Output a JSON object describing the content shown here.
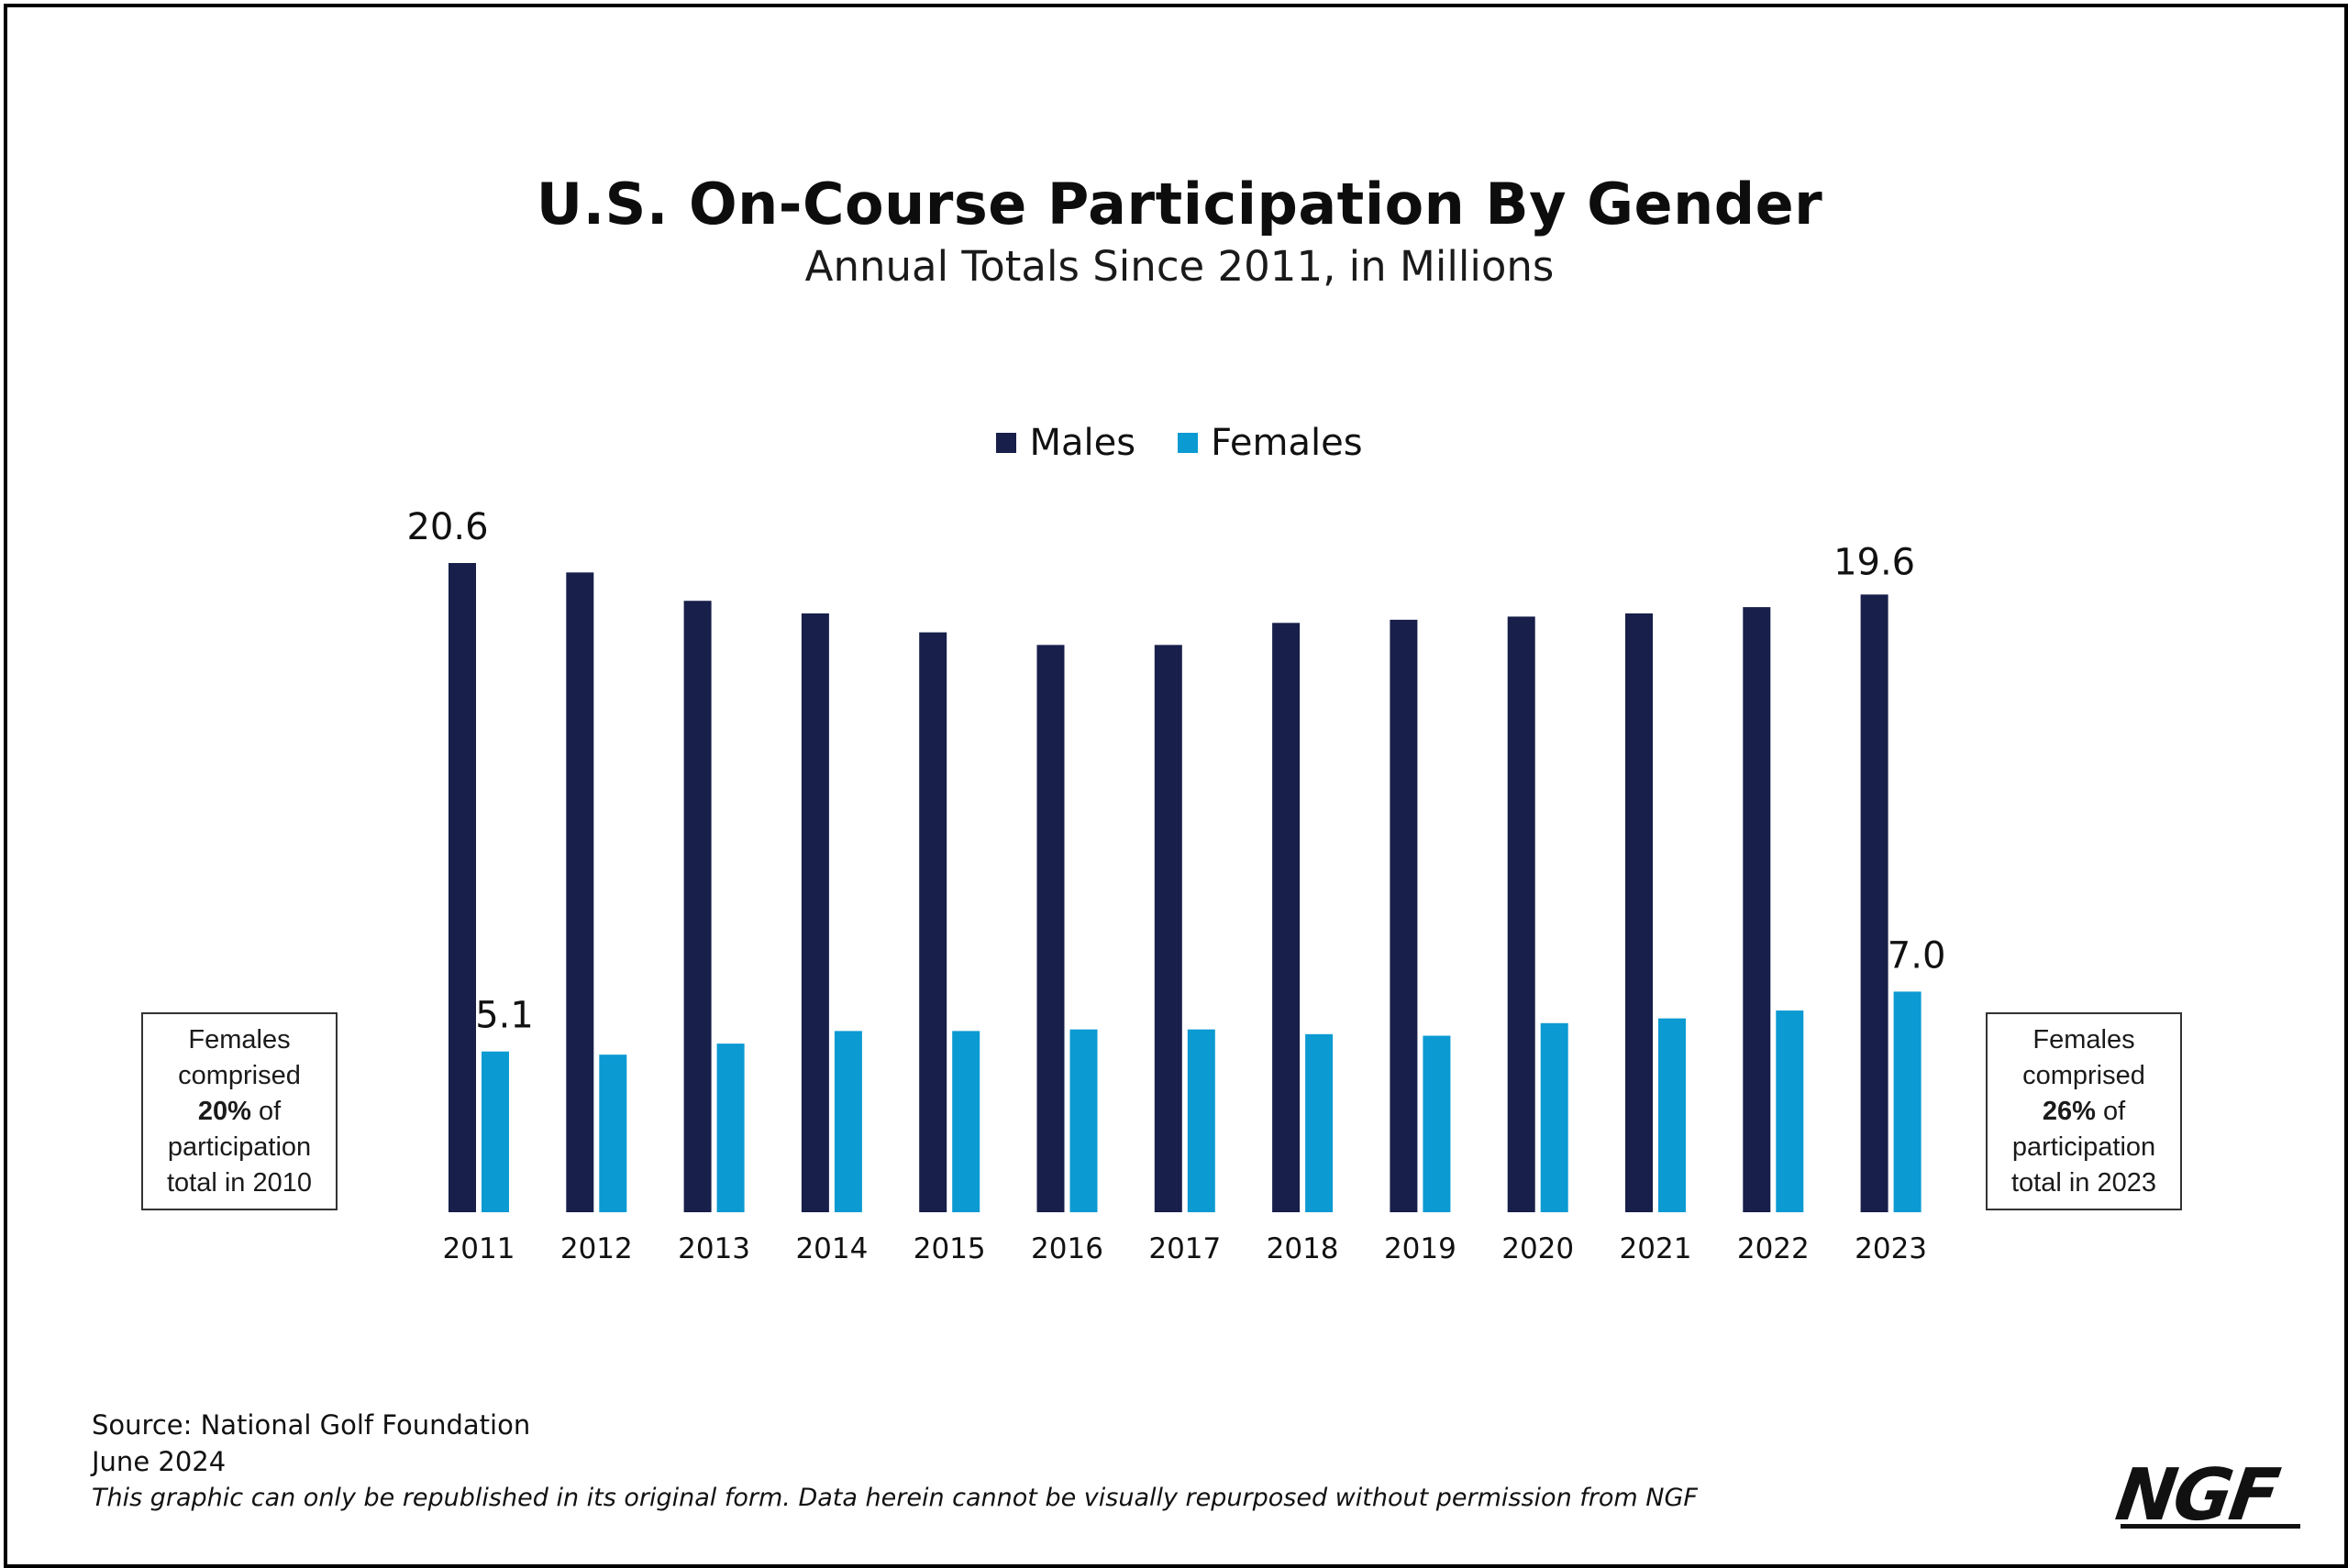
{
  "chart_data": {
    "type": "bar",
    "title": "U.S. On-Course Participation By Gender",
    "subtitle": "Annual Totals Since 2011, in Millions",
    "categories": [
      "2011",
      "2012",
      "2013",
      "2014",
      "2015",
      "2016",
      "2017",
      "2018",
      "2019",
      "2020",
      "2021",
      "2022",
      "2023"
    ],
    "series": [
      {
        "name": "Males",
        "color": "#171f4a",
        "values": [
          20.6,
          20.3,
          19.4,
          19.0,
          18.4,
          18.0,
          18.0,
          18.7,
          18.8,
          18.9,
          19.0,
          19.2,
          19.6
        ]
      },
      {
        "name": "Females",
        "color": "#0b9ad2",
        "values": [
          5.1,
          5.0,
          5.35,
          5.75,
          5.75,
          5.8,
          5.8,
          5.65,
          5.6,
          6.0,
          6.15,
          6.4,
          7.0
        ]
      }
    ],
    "data_labels": [
      {
        "series": 0,
        "index": 0,
        "text": "20.6"
      },
      {
        "series": 1,
        "index": 0,
        "text": "5.1"
      },
      {
        "series": 0,
        "index": 12,
        "text": "19.6"
      },
      {
        "series": 1,
        "index": 12,
        "text": "7.0"
      }
    ],
    "ylim": [
      0,
      20.6
    ],
    "legend_position": "top-center",
    "grid": false
  },
  "notes": {
    "left": {
      "line1": "Females",
      "line2": "comprised",
      "pct": "20%",
      "of": " of",
      "line4": "participation",
      "line5": "total in 2010"
    },
    "right": {
      "line1": "Females",
      "line2": "comprised",
      "pct": "26%",
      "of": " of",
      "line4": "participation",
      "line5": "total in 2023"
    }
  },
  "footer": {
    "source": "Source: National Golf Foundation",
    "date": "June 2024",
    "disclaimer": "This graphic can only be republished in its original form. Data herein cannot be visually repurposed without permission from NGF"
  },
  "logo": {
    "text": "NGF"
  }
}
